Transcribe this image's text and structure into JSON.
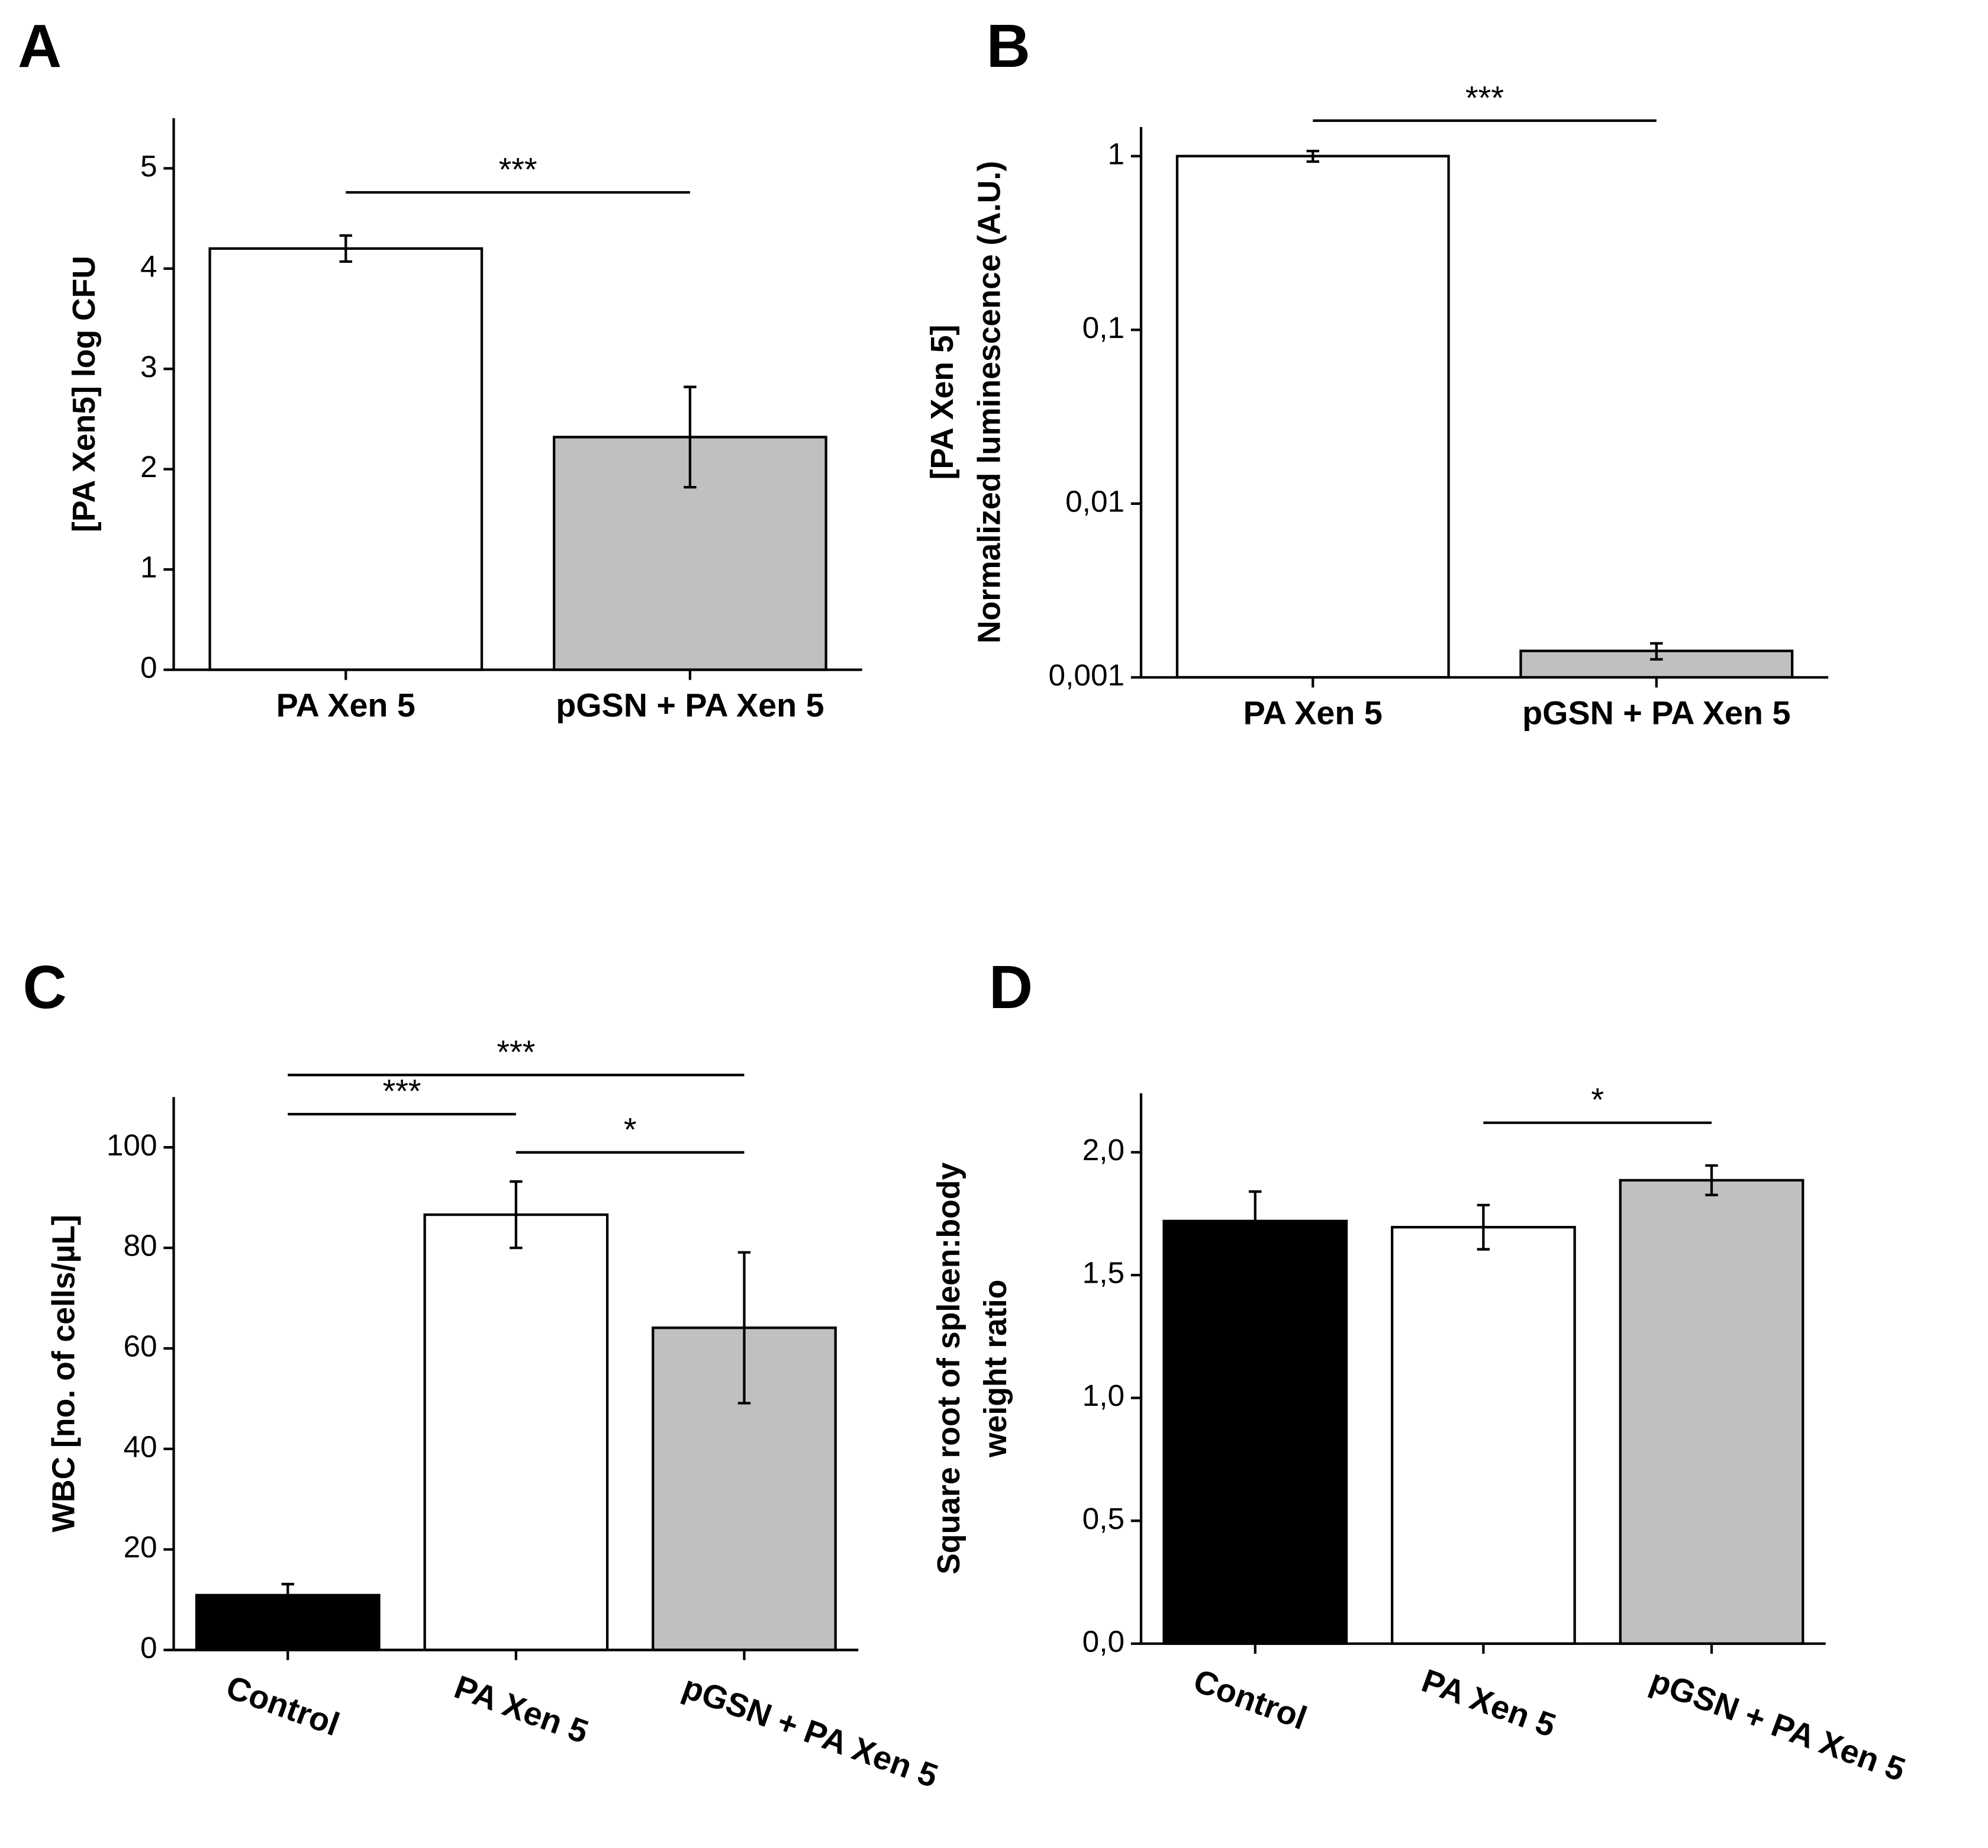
{
  "chart_data": [
    {
      "type": "bar",
      "panel": "A",
      "ylabel": [
        "[PA Xen5] log CFU"
      ],
      "categories": [
        "PA Xen 5",
        "pGSN + PA Xen 5"
      ],
      "values": [
        4.2,
        2.32
      ],
      "errors": [
        0.13,
        0.5
      ],
      "colors": [
        "#ffffff",
        "#c0c0c0"
      ],
      "ylim": [
        0,
        5.5
      ],
      "yticks": [
        0,
        1,
        2,
        3,
        4,
        5
      ],
      "log": false,
      "rotate_labels": false,
      "annotations": [
        {
          "label": "***",
          "from": 0,
          "to": 1,
          "y": 4.76
        }
      ]
    },
    {
      "type": "bar",
      "panel": "B",
      "ylabel": [
        "[PA Xen 5]",
        "Normalized  luminescence  (A.U.)"
      ],
      "categories": [
        "PA Xen 5",
        "pGSN + PA Xen 5"
      ],
      "values": [
        1,
        0.00142
      ],
      "errors": [
        0.07,
        0.00015
      ],
      "colors": [
        "#ffffff",
        "#c0c0c0"
      ],
      "ylim": [
        0.001,
        1.47
      ],
      "log": true,
      "rotate_labels": false,
      "yticks": [
        {
          "value": 0.001,
          "label": "0,001"
        },
        {
          "value": 0.01,
          "label": "0,01"
        },
        {
          "value": 0.1,
          "label": "0,1"
        },
        1
      ],
      "annotations": [
        {
          "label": "***",
          "from": 0,
          "to": 1,
          "y": 1.6
        }
      ]
    },
    {
      "type": "bar",
      "panel": "C",
      "ylabel": [
        "WBC [no. of cells/µL]"
      ],
      "categories": [
        "Control",
        "PA Xen 5",
        "pGSN + PA Xen 5"
      ],
      "values": [
        10.9,
        86.6,
        64.1
      ],
      "errors": [
        2.2,
        6.6,
        15
      ],
      "colors": [
        "#000000",
        "#ffffff",
        "#c0c0c0"
      ],
      "ylim": [
        0,
        110
      ],
      "yticks": [
        0,
        20,
        40,
        60,
        80,
        100
      ],
      "log": false,
      "rotate_labels": true,
      "annotations": [
        {
          "label": "***",
          "from": 0,
          "to": 2,
          "y": 114.4
        },
        {
          "label": "***",
          "from": 0,
          "to": 1,
          "y": 106.6
        },
        {
          "label": "*",
          "from": 1,
          "to": 2,
          "y": 99
        }
      ]
    },
    {
      "type": "bar",
      "panel": "D",
      "ylabel": [
        "Square root of spleen:body",
        "weight ratio"
      ],
      "categories": [
        "Control",
        "PA Xen 5",
        "pGSN + PA Xen 5"
      ],
      "values": [
        1.72,
        1.695,
        1.886
      ],
      "errors": [
        0.12,
        0.09,
        0.06
      ],
      "colors": [
        "#000000",
        "#ffffff",
        "#c0c0c0"
      ],
      "ylim": [
        0,
        2.24
      ],
      "log": false,
      "rotate_labels": true,
      "yticks": [
        {
          "value": 0,
          "label": "0,0"
        },
        {
          "value": 0.5,
          "label": "0,5"
        },
        {
          "value": 1,
          "label": "1,0"
        },
        {
          "value": 1.5,
          "label": "1,5"
        },
        {
          "value": 2,
          "label": "2,0"
        }
      ],
      "annotations": [
        {
          "label": "*",
          "from": 1,
          "to": 2,
          "y": 2.12
        }
      ]
    }
  ]
}
